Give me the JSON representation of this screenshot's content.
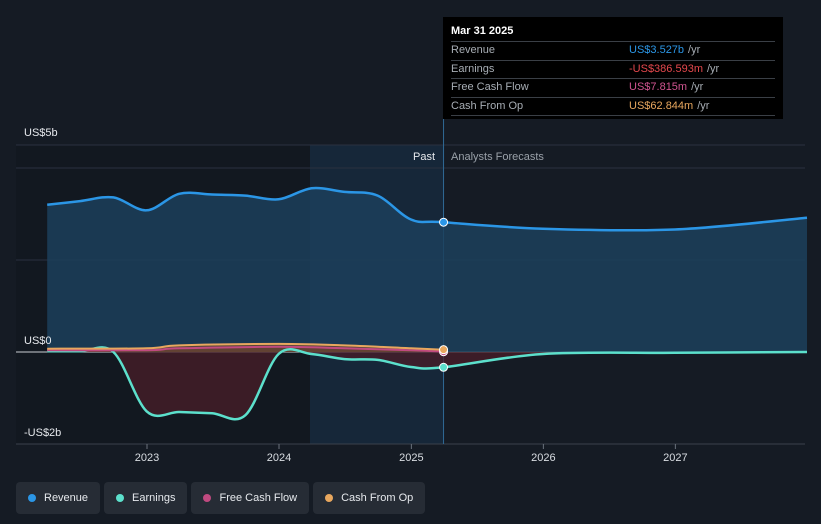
{
  "chart_data": {
    "type": "area",
    "y_labels": {
      "top": "US$5b",
      "zero": "US$0",
      "bottom": "-US$2b"
    },
    "ylim": [
      -2,
      5
    ],
    "xlim": [
      "2022-03-01",
      "2027-12-31"
    ],
    "x_ticks": [
      "2023",
      "2024",
      "2025",
      "2026",
      "2027"
    ],
    "past_label": "Past",
    "forecast_label": "Analysts Forecasts",
    "divider_date": "2025-03-31",
    "series": [
      {
        "name": "Revenue",
        "color": "#2b96e6",
        "points": [
          [
            "2022-03-31",
            4.0
          ],
          [
            "2022-06-30",
            4.1
          ],
          [
            "2022-09-30",
            4.2
          ],
          [
            "2022-12-31",
            3.85
          ],
          [
            "2023-03-31",
            4.3
          ],
          [
            "2023-06-30",
            4.28
          ],
          [
            "2023-09-30",
            4.25
          ],
          [
            "2023-12-31",
            4.15
          ],
          [
            "2024-03-31",
            4.45
          ],
          [
            "2024-06-30",
            4.35
          ],
          [
            "2024-09-30",
            4.25
          ],
          [
            "2024-12-31",
            3.6
          ],
          [
            "2025-03-31",
            3.527
          ],
          [
            "2025-12-31",
            3.35
          ],
          [
            "2026-12-31",
            3.33
          ],
          [
            "2027-12-31",
            3.65
          ]
        ]
      },
      {
        "name": "Earnings",
        "color": "#5ce0cc",
        "points": [
          [
            "2022-03-31",
            0.02
          ],
          [
            "2022-06-30",
            0.02
          ],
          [
            "2022-09-30",
            0.0
          ],
          [
            "2022-12-31",
            -1.5
          ],
          [
            "2023-03-31",
            -1.52
          ],
          [
            "2023-06-30",
            -1.55
          ],
          [
            "2023-09-30",
            -1.6
          ],
          [
            "2023-12-31",
            -0.05
          ],
          [
            "2024-03-31",
            -0.05
          ],
          [
            "2024-06-30",
            -0.18
          ],
          [
            "2024-09-30",
            -0.2
          ],
          [
            "2024-12-31",
            -0.38
          ],
          [
            "2025-03-31",
            -0.387
          ],
          [
            "2025-12-31",
            -0.05
          ],
          [
            "2026-12-31",
            -0.02
          ],
          [
            "2027-12-31",
            0.0
          ]
        ]
      },
      {
        "name": "Free Cash Flow",
        "color": "#c04a80",
        "points": [
          [
            "2022-03-31",
            0.05
          ],
          [
            "2022-12-31",
            0.05
          ],
          [
            "2023-03-31",
            0.1
          ],
          [
            "2023-12-31",
            0.14
          ],
          [
            "2024-06-30",
            0.1
          ],
          [
            "2024-12-31",
            0.05
          ],
          [
            "2025-03-31",
            0.008
          ]
        ]
      },
      {
        "name": "Cash From Op",
        "color": "#e8a75e",
        "points": [
          [
            "2022-03-31",
            0.09
          ],
          [
            "2022-12-31",
            0.1
          ],
          [
            "2023-03-31",
            0.18
          ],
          [
            "2023-12-31",
            0.22
          ],
          [
            "2024-06-30",
            0.18
          ],
          [
            "2024-12-31",
            0.1
          ],
          [
            "2025-03-31",
            0.063
          ]
        ]
      }
    ]
  },
  "tooltip": {
    "title": "Mar 31 2025",
    "rows": [
      {
        "label": "Revenue",
        "value": "US$3.527b",
        "unit": "/yr",
        "color": "#2b96e6"
      },
      {
        "label": "Earnings",
        "value": "-US$386.593m",
        "unit": "/yr",
        "color": "#e5484d"
      },
      {
        "label": "Free Cash Flow",
        "value": "US$7.815m",
        "unit": "/yr",
        "color": "#d05590"
      },
      {
        "label": "Cash From Op",
        "value": "US$62.844m",
        "unit": "/yr",
        "color": "#e8a75e"
      }
    ]
  },
  "legend": [
    {
      "label": "Revenue",
      "color": "#2b96e6"
    },
    {
      "label": "Earnings",
      "color": "#5ce0cc"
    },
    {
      "label": "Free Cash Flow",
      "color": "#c04a80"
    },
    {
      "label": "Cash From Op",
      "color": "#e8a75e"
    }
  ]
}
